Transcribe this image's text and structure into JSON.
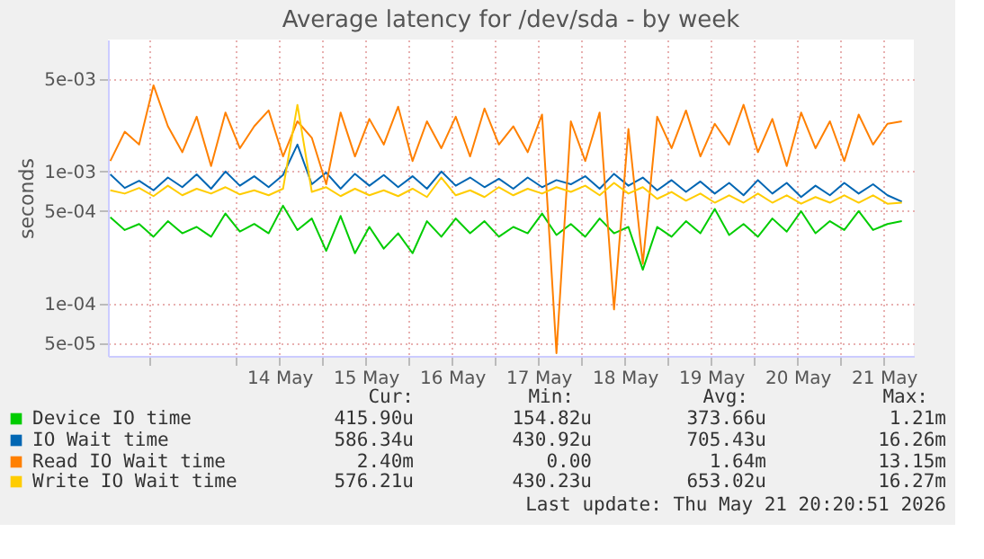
{
  "chart_data": {
    "type": "line",
    "title": "Average latency for /dev/sda - by week",
    "ylabel": "seconds",
    "x": [
      "2026-05-12T13:00",
      "2026-05-12T17:00",
      "2026-05-12T21:00",
      "2026-05-13T01:00",
      "2026-05-13T05:00",
      "2026-05-13T09:00",
      "2026-05-13T13:00",
      "2026-05-13T17:00",
      "2026-05-13T21:00",
      "2026-05-14T01:00",
      "2026-05-14T05:00",
      "2026-05-14T09:00",
      "2026-05-14T13:00",
      "2026-05-14T17:00",
      "2026-05-14T21:00",
      "2026-05-15T01:00",
      "2026-05-15T05:00",
      "2026-05-15T09:00",
      "2026-05-15T13:00",
      "2026-05-15T17:00",
      "2026-05-15T21:00",
      "2026-05-16T01:00",
      "2026-05-16T05:00",
      "2026-05-16T09:00",
      "2026-05-16T13:00",
      "2026-05-16T17:00",
      "2026-05-16T21:00",
      "2026-05-17T01:00",
      "2026-05-17T05:00",
      "2026-05-17T09:00",
      "2026-05-17T13:00",
      "2026-05-17T17:00",
      "2026-05-17T21:00",
      "2026-05-18T01:00",
      "2026-05-18T05:00",
      "2026-05-18T09:00",
      "2026-05-18T13:00",
      "2026-05-18T17:00",
      "2026-05-18T21:00",
      "2026-05-19T01:00",
      "2026-05-19T05:00",
      "2026-05-19T09:00",
      "2026-05-19T13:00",
      "2026-05-19T17:00",
      "2026-05-19T21:00",
      "2026-05-20T01:00",
      "2026-05-20T05:00",
      "2026-05-20T09:00",
      "2026-05-20T13:00",
      "2026-05-20T17:00",
      "2026-05-20T21:00",
      "2026-05-21T01:00",
      "2026-05-21T05:00",
      "2026-05-21T09:00",
      "2026-05-21T13:00",
      "2026-05-21T17:00"
    ],
    "series": [
      {
        "name": "Device IO time",
        "color": "#00cc00",
        "values": [
          0.00045,
          0.00036,
          0.0004,
          0.00032,
          0.00042,
          0.00034,
          0.00038,
          0.00032,
          0.00048,
          0.00035,
          0.0004,
          0.00034,
          0.00055,
          0.00036,
          0.00044,
          0.00025,
          0.00046,
          0.00024,
          0.00038,
          0.00026,
          0.00034,
          0.00024,
          0.00042,
          0.00032,
          0.00044,
          0.00034,
          0.00042,
          0.00032,
          0.00038,
          0.00034,
          0.00048,
          0.00033,
          0.0004,
          0.00032,
          0.00044,
          0.00034,
          0.00038,
          0.00018,
          0.00038,
          0.00032,
          0.00042,
          0.00034,
          0.00052,
          0.00033,
          0.0004,
          0.00032,
          0.00044,
          0.00035,
          0.0005,
          0.00034,
          0.00042,
          0.00036,
          0.0005,
          0.00036,
          0.0004,
          0.00042
        ]
      },
      {
        "name": "IO Wait time",
        "color": "#0066b3",
        "values": [
          0.00095,
          0.00075,
          0.00085,
          0.00072,
          0.0009,
          0.00076,
          0.00095,
          0.00074,
          0.001,
          0.00078,
          0.00092,
          0.00076,
          0.00094,
          0.0016,
          0.0008,
          0.00098,
          0.00074,
          0.00096,
          0.00078,
          0.00094,
          0.00076,
          0.00092,
          0.00074,
          0.001,
          0.00078,
          0.0009,
          0.00076,
          0.00088,
          0.00074,
          0.0009,
          0.00076,
          0.00086,
          0.0008,
          0.00092,
          0.00074,
          0.00096,
          0.00078,
          0.0009,
          0.00072,
          0.00086,
          0.0007,
          0.00084,
          0.00068,
          0.00082,
          0.00066,
          0.00086,
          0.00068,
          0.00082,
          0.00064,
          0.00078,
          0.00066,
          0.00082,
          0.00068,
          0.0008,
          0.00066,
          0.00059
        ]
      },
      {
        "name": "Read IO Wait time",
        "color": "#ff8000",
        "values": [
          0.0012,
          0.002,
          0.0016,
          0.0045,
          0.0022,
          0.0014,
          0.0026,
          0.0011,
          0.0028,
          0.0015,
          0.0022,
          0.0029,
          0.0013,
          0.0024,
          0.0018,
          0.0008,
          0.0028,
          0.0013,
          0.0025,
          0.0016,
          0.0031,
          0.0012,
          0.0024,
          0.0015,
          0.0026,
          0.0013,
          0.003,
          0.0016,
          0.0022,
          0.0014,
          0.0027,
          4.2e-05,
          0.0024,
          0.0012,
          0.0028,
          9e-05,
          0.0021,
          0.0002,
          0.0026,
          0.0015,
          0.0029,
          0.0013,
          0.0023,
          0.0016,
          0.0032,
          0.0014,
          0.0025,
          0.0011,
          0.0028,
          0.0015,
          0.0024,
          0.0012,
          0.0027,
          0.0016,
          0.0023,
          0.0024
        ]
      },
      {
        "name": "Write IO Wait time",
        "color": "#ffcc00",
        "values": [
          0.00072,
          0.00068,
          0.00075,
          0.00065,
          0.00078,
          0.00066,
          0.00074,
          0.00068,
          0.00076,
          0.00067,
          0.00072,
          0.00066,
          0.00074,
          0.0032,
          0.0007,
          0.00076,
          0.00065,
          0.00074,
          0.00066,
          0.00072,
          0.00065,
          0.00074,
          0.00064,
          0.0009,
          0.00066,
          0.00072,
          0.00064,
          0.00076,
          0.00066,
          0.00074,
          0.00068,
          0.00076,
          0.0007,
          0.00078,
          0.00066,
          0.00082,
          0.00068,
          0.00076,
          0.00062,
          0.0007,
          0.0006,
          0.00068,
          0.00058,
          0.00066,
          0.00058,
          0.00068,
          0.00058,
          0.00066,
          0.00057,
          0.00064,
          0.00058,
          0.00066,
          0.00058,
          0.00066,
          0.00057,
          0.00058
        ]
      }
    ],
    "log": true,
    "xlim": [
      "2026-05-12T12:20",
      "2026-05-21T20:20"
    ],
    "xticks": [
      {
        "value": "2026-05-13T00:00",
        "label": null
      },
      {
        "value": "2026-05-14T00:00",
        "label": null
      },
      {
        "value": "2026-05-14T12:00",
        "label": "14 May"
      },
      {
        "value": "2026-05-15T00:00",
        "label": null
      },
      {
        "value": "2026-05-15T12:00",
        "label": "15 May"
      },
      {
        "value": "2026-05-16T00:00",
        "label": null
      },
      {
        "value": "2026-05-16T12:00",
        "label": "16 May"
      },
      {
        "value": "2026-05-17T00:00",
        "label": null
      },
      {
        "value": "2026-05-17T12:00",
        "label": "17 May"
      },
      {
        "value": "2026-05-18T00:00",
        "label": null
      },
      {
        "value": "2026-05-18T12:00",
        "label": "18 May"
      },
      {
        "value": "2026-05-19T00:00",
        "label": null
      },
      {
        "value": "2026-05-19T12:00",
        "label": "19 May"
      },
      {
        "value": "2026-05-20T00:00",
        "label": null
      },
      {
        "value": "2026-05-20T12:00",
        "label": "20 May"
      },
      {
        "value": "2026-05-21T00:00",
        "label": null
      },
      {
        "value": "2026-05-21T12:00",
        "label": "21 May"
      }
    ],
    "ylim": [
      4e-05,
      0.01
    ],
    "yticks": [
      {
        "value": 5e-05,
        "label": "5e-05"
      },
      {
        "value": 0.0001,
        "label": "1e-04"
      },
      {
        "value": 0.0005,
        "label": "5e-04"
      },
      {
        "value": 0.001,
        "label": "1e-03"
      },
      {
        "value": 0.005,
        "label": "5e-03"
      }
    ],
    "grid": true,
    "legend": "bottom",
    "annotations": [
      "Cur:",
      "Min:",
      "Avg:",
      "Max:",
      "415.90u",
      "154.82u",
      "373.66u",
      "1.21m",
      "586.34u",
      "430.92u",
      "705.43u",
      "16.26m",
      "2.40m",
      "0.00",
      "1.64m",
      "13.15m",
      "576.21u",
      "430.23u",
      "653.02u",
      "16.27m",
      "Last update: Thu May 21 20:20:51 2026"
    ]
  }
}
